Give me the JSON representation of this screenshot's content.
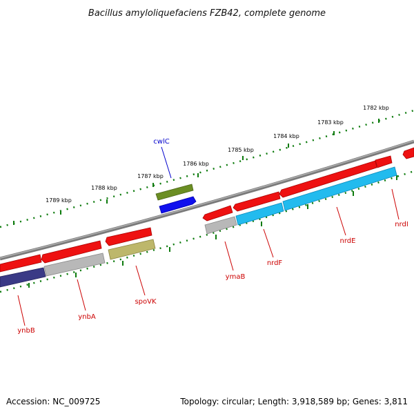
{
  "title": "Bacillus amyloliquefaciens FZB42, complete genome",
  "footer": {
    "accession": "Accession: NC_009725",
    "summary": "Topology: circular; Length: 3,918,589 bp; Genes: 3,811"
  },
  "ticks": [
    "1782 kbp",
    "1783 kbp",
    "1784 kbp",
    "1785 kbp",
    "1786 kbp",
    "1787 kbp",
    "1788 kbp",
    "1789 kbp"
  ],
  "colors": {
    "backbone": "#8a8a8a",
    "tick": "#0c7a0c",
    "label_red": "#cc0000",
    "label_blue": "#0000cc",
    "gene_red": "#ee1111",
    "gene_gray": "#b8b8b8",
    "gene_cyan": "#22bbee",
    "gene_olive": "#bdb76b",
    "gene_green": "#6b8e23",
    "gene_blue": "#1010ee",
    "gene_navy": "#3a3a86"
  },
  "genes": [
    {
      "name": "cwlC",
      "color": "blue",
      "strand": "plus"
    },
    {
      "name": "nrdI",
      "color": "red",
      "strand": "minus"
    },
    {
      "name": "nrdE",
      "color": "red",
      "strand": "minus"
    },
    {
      "name": "nrdF",
      "color": "red",
      "strand": "minus"
    },
    {
      "name": "ymaB",
      "color": "red",
      "strand": "minus"
    },
    {
      "name": "spoVK",
      "color": "red",
      "strand": "minus"
    },
    {
      "name": "ynbA",
      "color": "red",
      "strand": "minus"
    },
    {
      "name": "ynbB",
      "color": "red",
      "strand": "minus"
    }
  ]
}
